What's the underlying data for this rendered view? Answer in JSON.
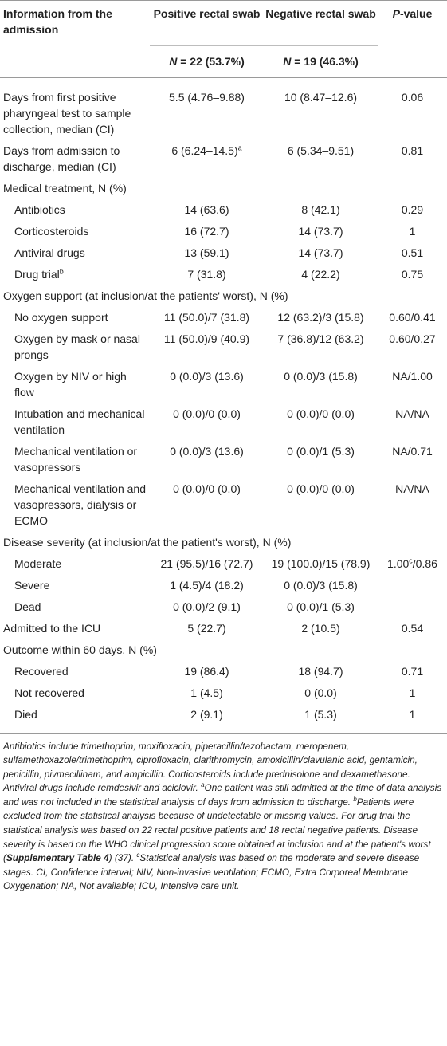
{
  "header": {
    "col1": "Information from the admission",
    "col2": "Positive rectal swab",
    "col3": "Negative rectal swab",
    "col4_p": "P",
    "col4_rest": "-value",
    "n_pos_prefix": "N",
    "n_pos_rest": " = 22 (53.7%)",
    "n_neg_prefix": "N",
    "n_neg_rest": " = 19 (46.3%)"
  },
  "rows": [
    {
      "label": "Days from first positive pharyngeal test to sample collection, median (CI)",
      "pos": "5.5 (4.76–9.88)",
      "neg": "10 (8.47–12.6)",
      "p": "0.06"
    },
    {
      "label": "Days from admission to discharge, median (CI)",
      "pos": "6 (6.24–14.5)",
      "pos_sup": "a",
      "neg": "6 (5.34–9.51)",
      "p": "0.81"
    },
    {
      "label": "Medical treatment, N (%)"
    },
    {
      "label": "Antibiotics",
      "pos": "14 (63.6)",
      "neg": "8 (42.1)",
      "p": "0.29"
    },
    {
      "label": "Corticosteroids",
      "pos": "16 (72.7)",
      "neg": "14 (73.7)",
      "p": "1"
    },
    {
      "label": "Antiviral drugs",
      "pos": "13 (59.1)",
      "neg": "14 (73.7)",
      "p": "0.51"
    },
    {
      "label": "Drug trial",
      "label_sup": "b",
      "pos": "7 (31.8)",
      "neg": "4 (22.2)",
      "p": "0.75"
    },
    {
      "label": "Oxygen support (at inclusion/at the patients' worst), N (%)"
    },
    {
      "label": "No oxygen support",
      "pos": "11 (50.0)/7 (31.8)",
      "neg": "12 (63.2)/3 (15.8)",
      "p": "0.60/0.41"
    },
    {
      "label": "Oxygen by mask or nasal prongs",
      "pos": "11 (50.0)/9 (40.9)",
      "neg": "7 (36.8)/12 (63.2)",
      "p": "0.60/0.27"
    },
    {
      "label": "Oxygen by NIV or high flow",
      "pos": "0 (0.0)/3 (13.6)",
      "neg": "0 (0.0)/3 (15.8)",
      "p": "NA/1.00"
    },
    {
      "label": "Intubation and mechanical ventilation",
      "pos": "0 (0.0)/0 (0.0)",
      "neg": "0 (0.0)/0 (0.0)",
      "p": "NA/NA"
    },
    {
      "label": "Mechanical ventilation or vasopressors",
      "pos": "0 (0.0)/3 (13.6)",
      "neg": "0 (0.0)/1 (5.3)",
      "p": "NA/0.71"
    },
    {
      "label": "Mechanical ventilation and vasopressors, dialysis or ECMO",
      "pos": "0 (0.0)/0 (0.0)",
      "neg": "0 (0.0)/0 (0.0)",
      "p": "NA/NA"
    },
    {
      "label": "Disease severity (at inclusion/at the patient's worst), N (%)"
    },
    {
      "label": "Moderate",
      "pos": "21 (95.5)/16 (72.7)",
      "neg": "19 (100.0)/15 (78.9)",
      "p": "1.00",
      "p_sup": "c",
      "p_after": "/0.86"
    },
    {
      "label": "Severe",
      "pos": "1 (4.5)/4 (18.2)",
      "neg": "0 (0.0)/3 (15.8)",
      "p": ""
    },
    {
      "label": "Dead",
      "pos": "0 (0.0)/2 (9.1)",
      "neg": "0 (0.0)/1 (5.3)",
      "p": ""
    },
    {
      "label": "Admitted to the ICU",
      "pos": "5 (22.7)",
      "neg": "2 (10.5)",
      "p": "0.54"
    },
    {
      "label": "Outcome within 60 days, N (%)"
    },
    {
      "label": "Recovered",
      "pos": "19 (86.4)",
      "neg": "18 (94.7)",
      "p": "0.71"
    },
    {
      "label": "Not recovered",
      "pos": "1 (4.5)",
      "neg": "0 (0.0)",
      "p": "1"
    },
    {
      "label": "Died",
      "pos": "2 (9.1)",
      "neg": "1 (5.3)",
      "p": "1"
    }
  ],
  "footnote": {
    "t1": "Antibiotics include trimethoprim, moxifloxacin, piperacillin/tazobactam, meropenem, sulfamethoxazole/trimethoprim, ciprofloxacin, clarithromycin, amoxicillin/clavulanic acid, gentamicin, penicillin, pivmecillinam, and ampicillin. Corticosteroids include prednisolone and dexamethasone. Antiviral drugs include remdesivir and aciclovir. ",
    "sa": "a",
    "t2": "One patient was still admitted at the time of data analysis and was not included in the statistical analysis of days from admission to discharge. ",
    "sb": "b",
    "t3": "Patients were excluded from the statistical analysis because of undetectable or missing values. For drug trial the statistical analysis was based on 22 rectal positive patients and 18 rectal negative patients. Disease severity is based on the WHO clinical progression score obtained at inclusion and at the patient's worst (",
    "bold": "Supplementary Table 4",
    "t4": ") (37). ",
    "sc": "c",
    "t5": "Statistical analysis was based on the moderate and severe disease stages. CI, Confidence interval; NIV, Non-invasive ventilation; ECMO, Extra Corporeal Membrane Oxygenation; NA, Not available; ICU, Intensive care unit."
  }
}
